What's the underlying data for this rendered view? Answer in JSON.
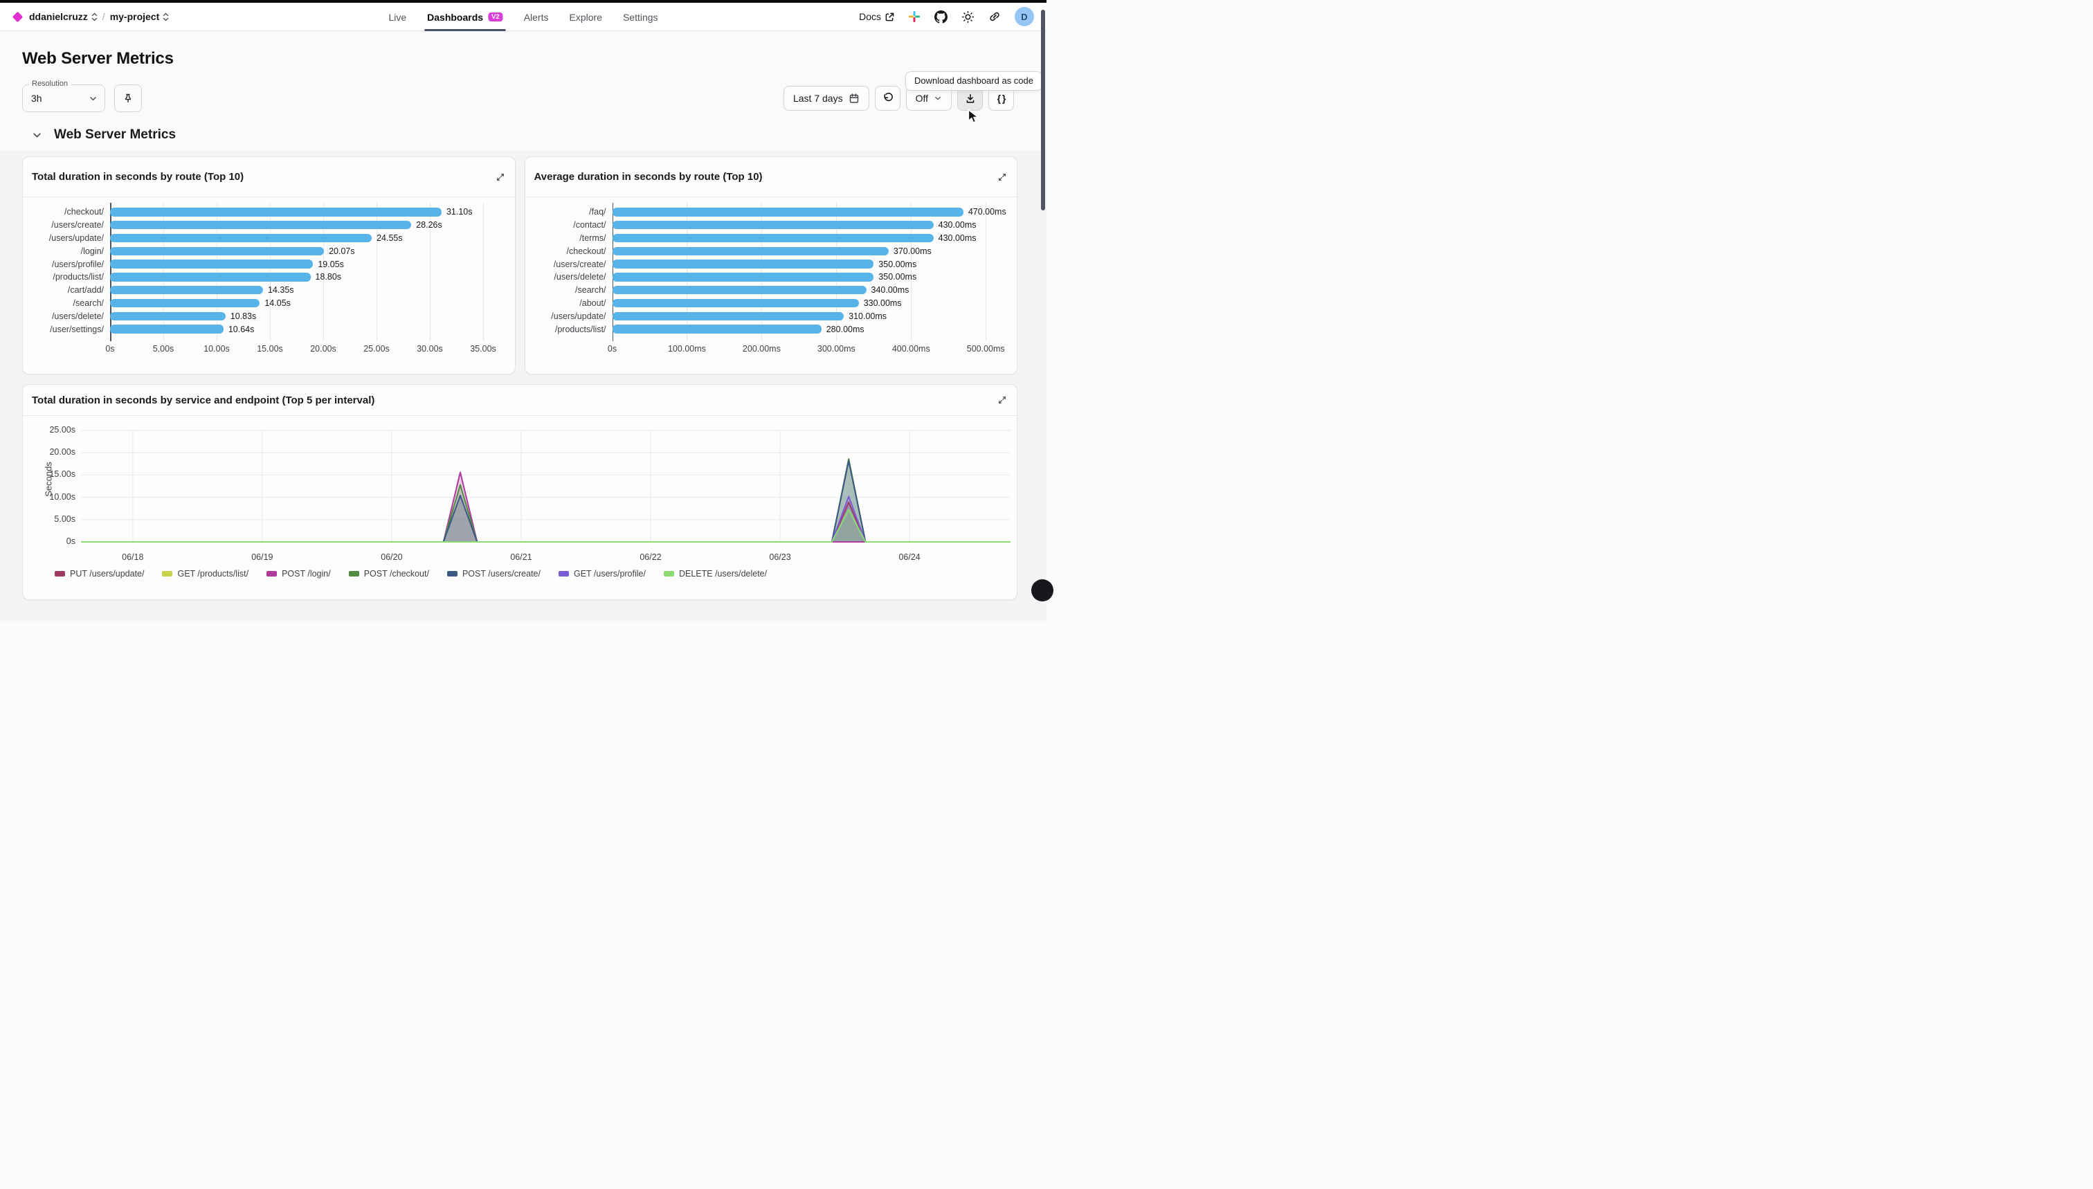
{
  "topbar": {
    "org": "ddanielcruzz",
    "separator": "/",
    "project": "my-project",
    "tabs": [
      {
        "label": "Live",
        "active": false
      },
      {
        "label": "Dashboards",
        "active": true,
        "badge": "V2"
      },
      {
        "label": "Alerts",
        "active": false
      },
      {
        "label": "Explore",
        "active": false
      },
      {
        "label": "Settings",
        "active": false
      }
    ],
    "docs_label": "Docs",
    "avatar_initial": "D"
  },
  "page": {
    "title": "Web Server Metrics",
    "section_title": "Web Server Metrics"
  },
  "toolbar": {
    "resolution_label": "Resolution",
    "resolution_value": "3h",
    "time_range_label": "Last 7 days",
    "refresh_off_label": "Off",
    "braces_label": "{ }",
    "tooltip": "Download dashboard as code"
  },
  "colors": {
    "accent_magenta": "#e231ce",
    "bar_blue": "#56B4E9",
    "active_tab_underline": "#475569"
  },
  "chart_data": [
    {
      "type": "bar",
      "orientation": "horizontal",
      "title": "Total duration in seconds by route (Top 10)",
      "categories": [
        "/checkout/",
        "/users/create/",
        "/users/update/",
        "/login/",
        "/users/profile/",
        "/products/list/",
        "/cart/add/",
        "/search/",
        "/users/delete/",
        "/user/settings/"
      ],
      "values": [
        31.1,
        28.26,
        24.55,
        20.07,
        19.05,
        18.8,
        14.35,
        14.05,
        10.83,
        10.64
      ],
      "value_labels": [
        "31.10s",
        "28.26s",
        "24.55s",
        "20.07s",
        "19.05s",
        "18.80s",
        "14.35s",
        "14.05s",
        "10.83s",
        "10.64s"
      ],
      "unit": "seconds",
      "xlim": [
        0,
        37.5
      ],
      "ticks": [
        {
          "v": 0,
          "label": "0s"
        },
        {
          "v": 5,
          "label": "5.00s"
        },
        {
          "v": 10,
          "label": "10.00s"
        },
        {
          "v": 15,
          "label": "15.00s"
        },
        {
          "v": 20,
          "label": "20.00s"
        },
        {
          "v": 25,
          "label": "25.00s"
        },
        {
          "v": 30,
          "label": "30.00s"
        },
        {
          "v": 35,
          "label": "35.00s"
        }
      ],
      "bar_color": "#56B4E9"
    },
    {
      "type": "bar",
      "orientation": "horizontal",
      "title": "Average duration in seconds by route (Top 10)",
      "categories": [
        "/faq/",
        "/contact/",
        "/terms/",
        "/checkout/",
        "/users/create/",
        "/users/delete/",
        "/search/",
        "/about/",
        "/users/update/",
        "/products/list/"
      ],
      "values": [
        470,
        430,
        430,
        370,
        350,
        350,
        340,
        330,
        310,
        280
      ],
      "value_labels": [
        "470.00ms",
        "430.00ms",
        "430.00ms",
        "370.00ms",
        "350.00ms",
        "350.00ms",
        "340.00ms",
        "330.00ms",
        "310.00ms",
        "280.00ms"
      ],
      "unit": "milliseconds",
      "xlim": [
        0,
        535
      ],
      "ticks": [
        {
          "v": 0,
          "label": "0s"
        },
        {
          "v": 100,
          "label": "100.00ms"
        },
        {
          "v": 200,
          "label": "200.00ms"
        },
        {
          "v": 300,
          "label": "300.00ms"
        },
        {
          "v": 400,
          "label": "400.00ms"
        },
        {
          "v": 500,
          "label": "500.00ms"
        }
      ],
      "bar_color": "#56B4E9"
    },
    {
      "type": "area",
      "title": "Total duration in seconds by service and endpoint (Top 5 per interval)",
      "ylabel": "Seconds",
      "ylim": [
        0,
        25
      ],
      "y_ticks": [
        {
          "v": 0,
          "label": "0s"
        },
        {
          "v": 5,
          "label": "5.00s"
        },
        {
          "v": 10,
          "label": "10.00s"
        },
        {
          "v": 15,
          "label": "15.00s"
        },
        {
          "v": 20,
          "label": "20.00s"
        },
        {
          "v": 25,
          "label": "25.00s"
        }
      ],
      "x_ticks": [
        {
          "x": 0,
          "label": "06/18"
        },
        {
          "x": 1,
          "label": "06/19"
        },
        {
          "x": 2,
          "label": "06/20"
        },
        {
          "x": 3,
          "label": "06/21"
        },
        {
          "x": 4,
          "label": "06/22"
        },
        {
          "x": 5,
          "label": "06/23"
        },
        {
          "x": 6,
          "label": "06/24"
        }
      ],
      "x_range": [
        -0.4,
        6.78
      ],
      "baseline_value": 0,
      "spike_halfwidth_days": 0.13,
      "series": [
        {
          "name": "PUT /users/update/",
          "color": "#9D3C63",
          "spikes": [
            {
              "x": 5.53,
              "peak": 8.9
            }
          ]
        },
        {
          "name": "GET /products/list/",
          "color": "#C9D24B",
          "spikes": []
        },
        {
          "name": "POST /login/",
          "color": "#B03A9C",
          "spikes": [
            {
              "x": 2.53,
              "peak": 15.6
            }
          ]
        },
        {
          "name": "POST /checkout/",
          "color": "#4E8C3F",
          "spikes": [
            {
              "x": 2.53,
              "peak": 12.8
            },
            {
              "x": 5.53,
              "peak": 18.6
            }
          ]
        },
        {
          "name": "POST /users/create/",
          "color": "#3A5A85",
          "spikes": [
            {
              "x": 2.53,
              "peak": 10.4
            },
            {
              "x": 5.53,
              "peak": 18.2
            }
          ]
        },
        {
          "name": "GET /users/profile/",
          "color": "#7C5CD6",
          "spikes": [
            {
              "x": 5.53,
              "peak": 10.2
            }
          ]
        },
        {
          "name": "DELETE /users/delete/",
          "color": "#8BDB70",
          "spikes": [
            {
              "x": 5.53,
              "peak": 7.2
            }
          ]
        }
      ],
      "legend_position": "bottom",
      "grid": true
    }
  ]
}
